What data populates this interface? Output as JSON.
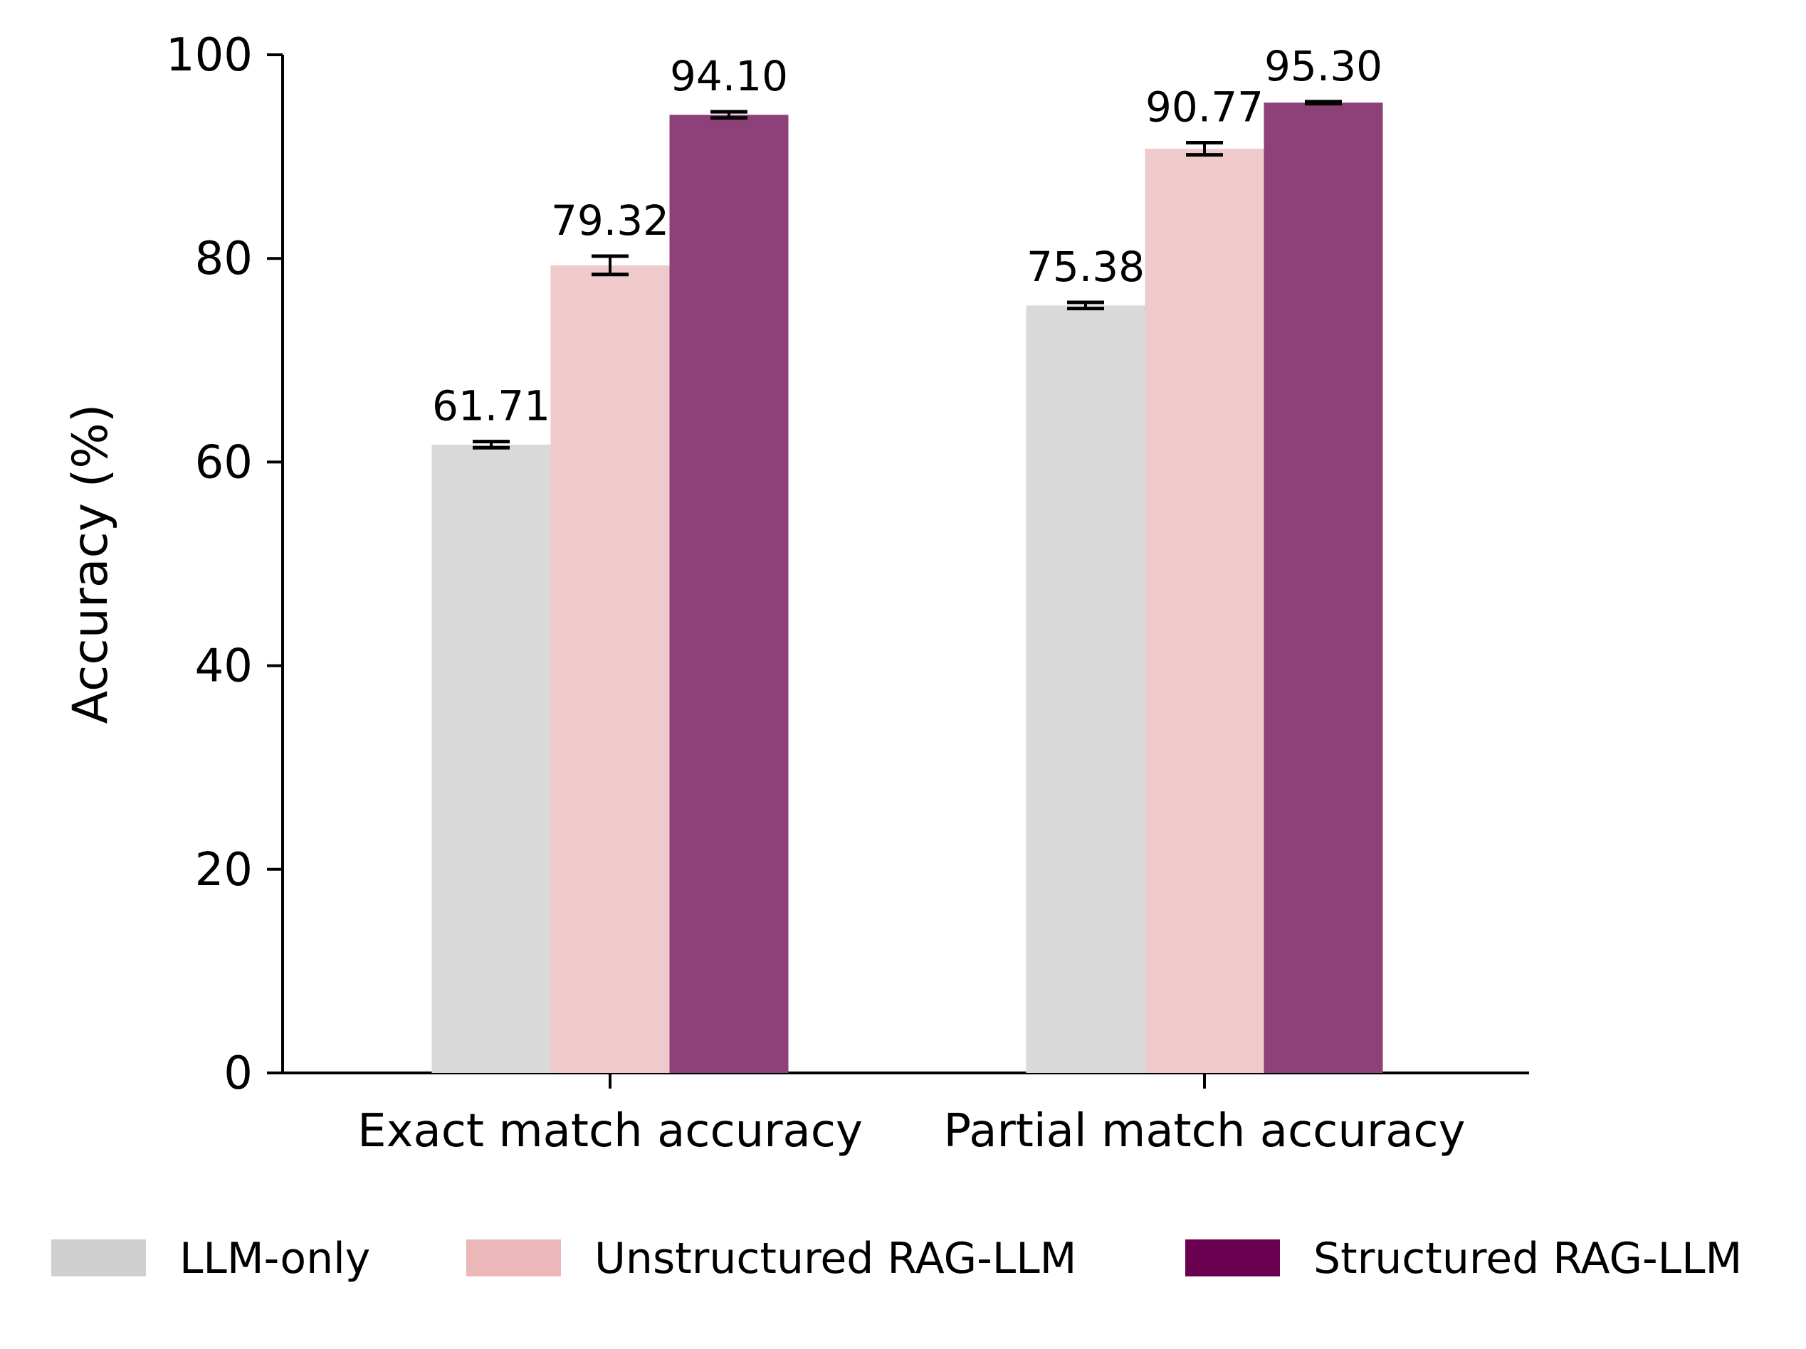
{
  "chart_data": {
    "type": "bar",
    "categories": [
      "Exact match accuracy",
      "Partial match accuracy"
    ],
    "series": [
      {
        "name": "LLM-only",
        "values": [
          61.71,
          75.38
        ],
        "errors": [
          0.3,
          0.3
        ],
        "color": "#d9d9d9",
        "legend_color": "#cfcfcf"
      },
      {
        "name": "Unstructured RAG-LLM",
        "values": [
          79.32,
          90.77
        ],
        "errors": [
          0.9,
          0.6
        ],
        "color": "#f0c9ca",
        "legend_color": "#ebb7b8"
      },
      {
        "name": "Structured RAG-LLM",
        "values": [
          94.1,
          95.3
        ],
        "errors": [
          0.3,
          0.1
        ],
        "color": "#8e4079",
        "legend_color": "#6b0050"
      }
    ],
    "data_labels": [
      [
        "61.71",
        "75.38"
      ],
      [
        "79.32",
        "90.77"
      ],
      [
        "94.10",
        "95.30"
      ]
    ],
    "ylabel": "Accuracy (%)",
    "xlabel": "",
    "ylim": [
      0,
      100
    ],
    "yticks": [
      "0",
      "20",
      "40",
      "60",
      "80",
      "100"
    ],
    "grid": false,
    "legend_position": "bottom"
  }
}
